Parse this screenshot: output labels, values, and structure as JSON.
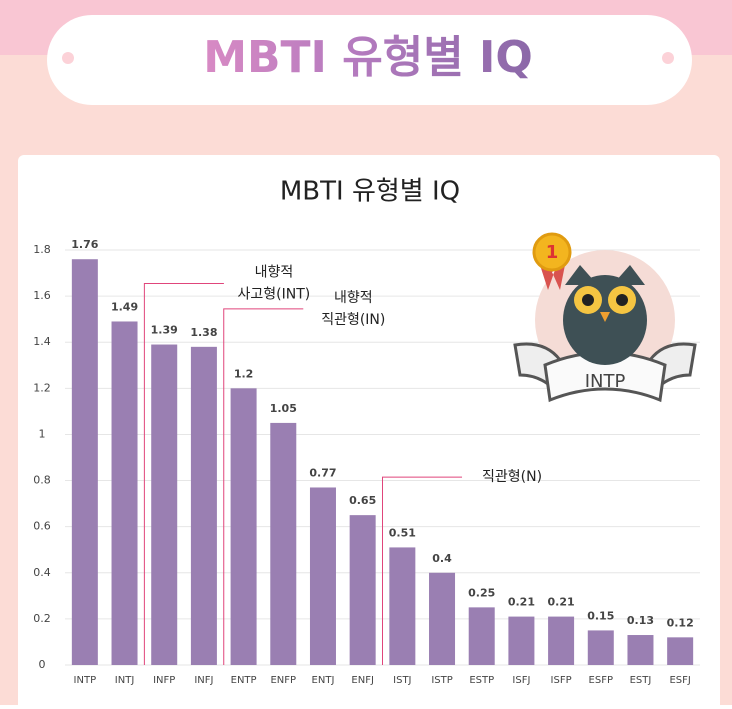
{
  "header": {
    "title": "MBTI 유형별 IQ"
  },
  "badge": {
    "rank": "1",
    "label": "INTP"
  },
  "chart_data": {
    "type": "bar",
    "title": "MBTI 유형별 IQ",
    "categories": [
      "INTP",
      "INTJ",
      "INFP",
      "INFJ",
      "ENTP",
      "ENFP",
      "ENTJ",
      "ENFJ",
      "ISTJ",
      "ISTP",
      "ESTP",
      "ISFJ",
      "ISFP",
      "ESFP",
      "ESTJ",
      "ESFJ"
    ],
    "values": [
      1.76,
      1.49,
      1.39,
      1.38,
      1.2,
      1.05,
      0.77,
      0.65,
      0.51,
      0.4,
      0.25,
      0.21,
      0.21,
      0.15,
      0.13,
      0.12
    ],
    "color": "#9a7fb2",
    "ylim": [
      0,
      1.8
    ],
    "yticks": [
      0,
      0.2,
      0.4,
      0.6,
      0.8,
      1,
      1.2,
      1.4,
      1.6,
      1.8
    ],
    "grid": true,
    "annotations": [
      {
        "lines": [
          "내향적",
          "사고형(INT)"
        ],
        "from": 1,
        "to": 3
      },
      {
        "lines": [
          "내향적",
          "직관형(IN)"
        ],
        "from": 3,
        "to": 7
      },
      {
        "lines": [
          "직관형(N)"
        ],
        "from": 7,
        "to": 15
      }
    ]
  }
}
